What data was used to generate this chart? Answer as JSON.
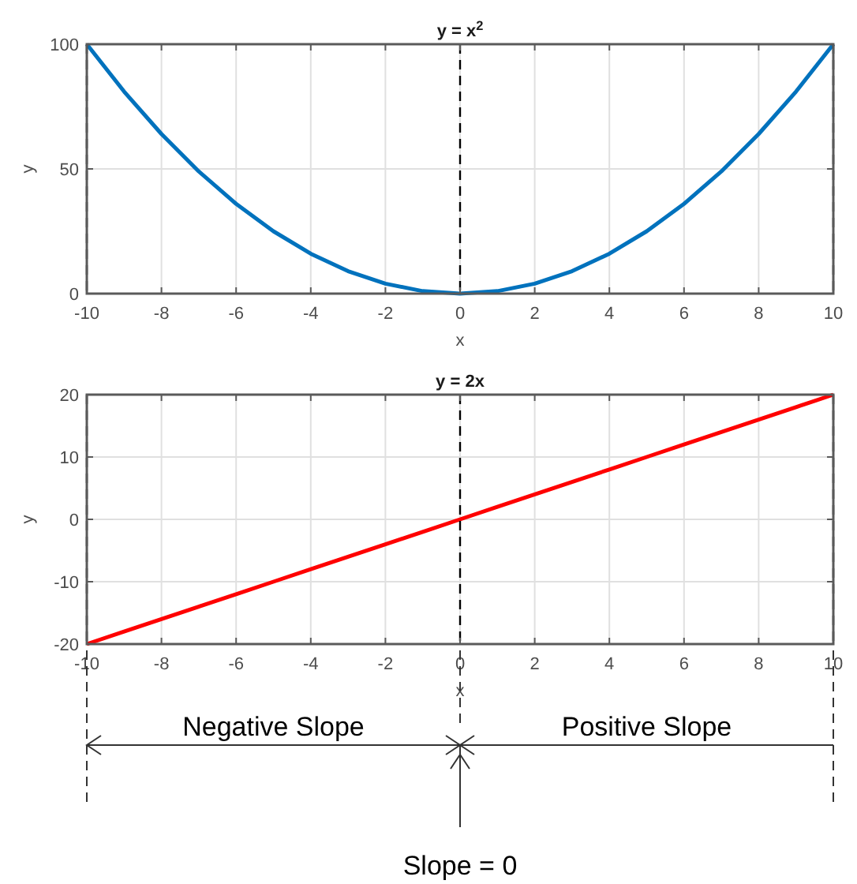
{
  "chart_data": [
    {
      "type": "line",
      "title": "y = x$^{2}$",
      "xlabel": "x",
      "ylabel": "y",
      "x": [
        -10,
        -9,
        -8,
        -7,
        -6,
        -5,
        -4,
        -3,
        -2,
        -1,
        0,
        1,
        2,
        3,
        4,
        5,
        6,
        7,
        8,
        9,
        10
      ],
      "series": [
        {
          "color": "#0072bd",
          "values": [
            100,
            81,
            64,
            49,
            36,
            25,
            16,
            9,
            4,
            1,
            0,
            1,
            4,
            9,
            16,
            25,
            36,
            49,
            64,
            81,
            100
          ]
        }
      ],
      "xlim": [
        -10,
        10
      ],
      "xticks": [
        -10,
        -8,
        -6,
        -4,
        -2,
        0,
        2,
        4,
        6,
        8,
        10
      ],
      "ylim": [
        0,
        100
      ],
      "yticks": [
        0,
        50,
        100
      ],
      "grid": true,
      "marker": "none",
      "line_style": "solid",
      "ref_lines": [
        {
          "axis": "x",
          "value": -10,
          "color": "#000000",
          "line_style": "dashed"
        },
        {
          "axis": "x",
          "value": 0,
          "color": "#000000",
          "line_style": "dashed"
        },
        {
          "axis": "x",
          "value": 10,
          "color": "#000000",
          "line_style": "dashed"
        }
      ]
    },
    {
      "type": "line",
      "title": "y = 2x",
      "xlabel": "x",
      "ylabel": "y",
      "x": [
        -10,
        -9,
        -8,
        -7,
        -6,
        -5,
        -4,
        -3,
        -2,
        -1,
        0,
        1,
        2,
        3,
        4,
        5,
        6,
        7,
        8,
        9,
        10
      ],
      "series": [
        {
          "color": "#ff0000",
          "values": [
            -20,
            -18,
            -16,
            -14,
            -12,
            -10,
            -8,
            -6,
            -4,
            -2,
            0,
            2,
            4,
            6,
            8,
            10,
            12,
            14,
            16,
            18,
            20
          ]
        }
      ],
      "xlim": [
        -10,
        10
      ],
      "xticks": [
        -10,
        -8,
        -6,
        -4,
        -2,
        0,
        2,
        4,
        6,
        8,
        10
      ],
      "ylim": [
        -20,
        20
      ],
      "yticks": [
        -20,
        -10,
        0,
        10,
        20
      ],
      "grid": true,
      "marker": "none",
      "line_style": "solid",
      "ref_lines": [
        {
          "axis": "x",
          "value": -10,
          "color": "#000000",
          "line_style": "dashed"
        },
        {
          "axis": "x",
          "value": 0,
          "color": "#000000",
          "line_style": "dashed"
        },
        {
          "axis": "x",
          "value": 10,
          "color": "#000000",
          "line_style": "dashed"
        }
      ],
      "annotations": [
        "Negative Slope",
        "Positive Slope",
        "Slope = 0"
      ]
    }
  ]
}
